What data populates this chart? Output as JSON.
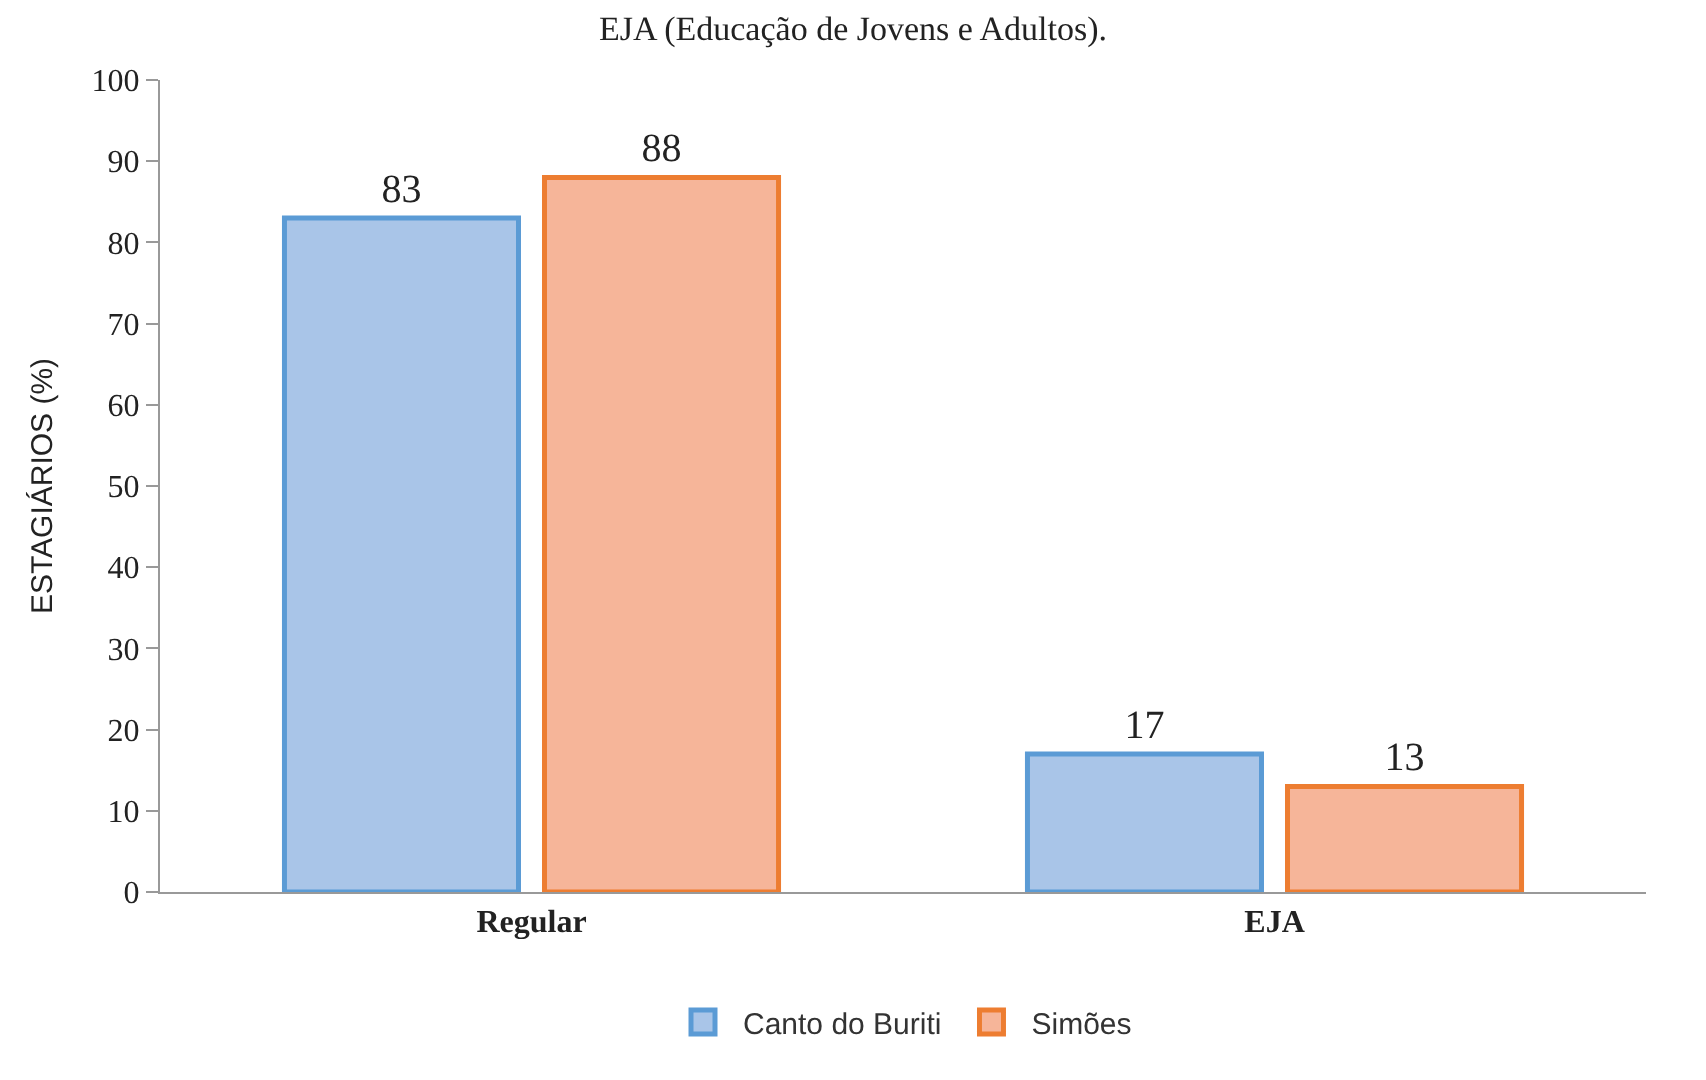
{
  "chart_data": {
    "type": "bar",
    "title": "EJA (Educação de Jovens e Adultos).",
    "ylabel": "ESTAGIÁRIOS (%)",
    "categories": [
      "Regular",
      "EJA"
    ],
    "series": [
      {
        "name": "Canto do Buriti",
        "color": "#a9c5e8",
        "values": [
          83,
          17
        ]
      },
      {
        "name": "Simões",
        "color": "#f6b599",
        "values": [
          88,
          13
        ]
      }
    ],
    "ylim": [
      0,
      100
    ],
    "yticks": [
      0,
      10,
      20,
      30,
      40,
      50,
      60,
      70,
      80,
      90,
      100
    ],
    "data_labels": true,
    "legend": "bottom"
  }
}
